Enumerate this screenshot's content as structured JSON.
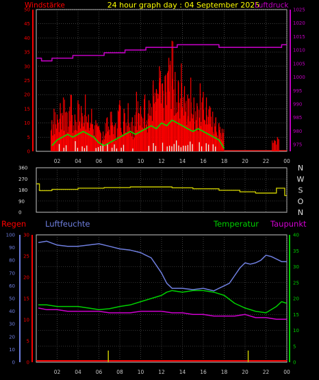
{
  "header": {
    "title": "24 hour graph day : 04 September 2025",
    "left_label": "Windstärke",
    "right_label": "Luftdruck"
  },
  "colors": {
    "wind": "#ff0000",
    "gust": "#ff0000",
    "avg_wind": "#00e000",
    "pressure": "#c000c0",
    "direction": "#c8c800",
    "humidity": "#6f7fe0",
    "temperature": "#00d000",
    "dewpoint": "#d000d0",
    "rain": "#ff0000",
    "white_bars": "#e8f8e8",
    "grid": "#6a6a6a",
    "title": "#ffff00"
  },
  "chart_data": [
    {
      "type": "bar",
      "name": "wind-panel",
      "x_ticks": [
        "02",
        "04",
        "06",
        "08",
        "10",
        "12",
        "14",
        "16",
        "18",
        "20",
        "22",
        "00"
      ],
      "left_axis": {
        "label": "Windstärke",
        "ticks": [
          0,
          5,
          10,
          15,
          20,
          25,
          30,
          35,
          40,
          45,
          50
        ],
        "ylim": [
          0,
          50
        ]
      },
      "right_axis": {
        "label": "Luftdruck",
        "ticks": [
          975,
          980,
          985,
          990,
          995,
          1000,
          1005,
          1010,
          1015,
          1020,
          1025
        ],
        "ylim": [
          972.5,
          1025
        ]
      },
      "series": [
        {
          "name": "gust",
          "x": [
            1.5,
            1.7,
            2.0,
            2.3,
            2.6,
            2.9,
            3.3,
            3.7,
            4.0,
            4.3,
            4.7,
            5.0,
            5.3,
            5.7,
            6.0,
            6.4,
            6.8,
            7.2,
            7.6,
            8.0,
            8.4,
            8.8,
            9.2,
            9.6,
            10.0,
            10.4,
            10.8,
            11.2,
            11.5,
            11.8,
            12.1,
            12.4,
            12.7,
            13.0,
            13.3,
            13.6,
            13.9,
            14.2,
            14.5,
            14.8,
            15.1,
            15.4,
            15.7,
            16.0,
            16.3,
            16.6,
            16.9,
            17.2,
            17.5,
            17.8,
            22.8,
            23.1
          ],
          "values": [
            11,
            15,
            13,
            17,
            19,
            14,
            20,
            13,
            18,
            16,
            20,
            13,
            15,
            11,
            9,
            7,
            12,
            14,
            10,
            18,
            15,
            17,
            12,
            21,
            16,
            20,
            18,
            25,
            22,
            30,
            24,
            27,
            33,
            39,
            28,
            25,
            31,
            23,
            20,
            26,
            19,
            17,
            24,
            21,
            19,
            16,
            14,
            12,
            10,
            8,
            4,
            5
          ]
        },
        {
          "name": "average",
          "x": [
            1.5,
            2,
            2.5,
            3,
            3.5,
            4,
            4.5,
            5,
            5.5,
            6,
            6.5,
            7,
            7.5,
            8,
            8.5,
            9,
            9.5,
            10,
            10.5,
            11,
            11.5,
            12,
            12.5,
            13,
            13.5,
            14,
            14.5,
            15,
            15.5,
            16,
            16.5,
            17,
            17.5,
            18
          ],
          "values": [
            2,
            4,
            5,
            6,
            5,
            6,
            7,
            6,
            5,
            3,
            2,
            3,
            4,
            5,
            6,
            7,
            6,
            7,
            8,
            9,
            8,
            10,
            9,
            11,
            10,
            9,
            8,
            7,
            8,
            7,
            6,
            5,
            4,
            1
          ]
        },
        {
          "name": "pressure",
          "x": [
            0,
            0.5,
            0.5,
            1.5,
            1.5,
            3.5,
            3.5,
            6.5,
            6.5,
            8.5,
            8.5,
            10.5,
            10.5,
            13.5,
            13.5,
            17.5,
            17.5,
            21.5,
            21.5,
            23.5,
            23.5,
            24
          ],
          "values": [
            1007,
            1007,
            1006,
            1006,
            1007,
            1007,
            1008,
            1008,
            1009,
            1009,
            1010,
            1010,
            1011,
            1011,
            1012,
            1012,
            1011,
            1011,
            1011,
            1011,
            1012,
            1012
          ]
        }
      ]
    },
    {
      "type": "line",
      "name": "direction-panel",
      "x_ticks": [],
      "left_axis": {
        "ticks": [
          0,
          90,
          180,
          270,
          360
        ],
        "ylim": [
          0,
          360
        ]
      },
      "right_labels": [
        "N",
        "W",
        "S",
        "O",
        "N"
      ],
      "series": [
        {
          "name": "direction",
          "x": [
            0,
            0.3,
            0.3,
            1.5,
            1.5,
            4,
            4,
            6.5,
            6.5,
            9,
            9,
            13,
            13,
            15,
            15,
            17.5,
            17.5,
            19.5,
            19.5,
            21,
            21,
            23,
            23,
            23.8,
            23.8,
            24
          ],
          "values": [
            230,
            230,
            175,
            175,
            185,
            185,
            195,
            195,
            200,
            200,
            205,
            205,
            198,
            198,
            190,
            190,
            178,
            178,
            165,
            165,
            155,
            155,
            195,
            195,
            135,
            135
          ]
        }
      ]
    },
    {
      "type": "line",
      "name": "climate-panel",
      "x_ticks": [
        "02",
        "04",
        "06",
        "08",
        "10",
        "12",
        "14",
        "16",
        "18",
        "20",
        "22",
        "00"
      ],
      "labels": {
        "regen": "Regen",
        "luftfeuchte": "Luftfeuchte",
        "temperatur": "Temperatur",
        "taupunkt": "Taupunkt"
      },
      "left_axis_humidity": {
        "ticks": [
          0,
          10,
          20,
          30,
          40,
          50,
          60,
          70,
          80,
          90,
          100
        ],
        "ylim": [
          0,
          100
        ]
      },
      "left_axis_rain": {
        "ticks": [
          0,
          5,
          10,
          15,
          20,
          25,
          30
        ],
        "ylim": [
          0,
          30
        ]
      },
      "right_axis_temp": {
        "ticks": [
          0,
          5,
          10,
          15,
          20,
          25,
          30,
          35,
          40
        ],
        "ylim": [
          0,
          40
        ]
      },
      "series": [
        {
          "name": "humidity",
          "x": [
            0.2,
            1,
            2,
            3,
            4,
            5,
            6,
            7,
            8,
            9,
            10,
            10.5,
            11,
            11.5,
            12,
            12.5,
            13,
            14,
            15,
            16,
            16.5,
            17,
            17.5,
            18,
            18.5,
            19,
            19.5,
            20,
            20.5,
            21,
            21.5,
            22,
            22.5,
            23,
            23.5,
            24
          ],
          "values": [
            94,
            95,
            92,
            91,
            91,
            92,
            93,
            91,
            89,
            88,
            86,
            84,
            82,
            76,
            70,
            62,
            58,
            58,
            57,
            58,
            57,
            56,
            58,
            60,
            62,
            68,
            74,
            78,
            77,
            78,
            80,
            84,
            83,
            81,
            79,
            79
          ]
        },
        {
          "name": "temperature",
          "x": [
            0.2,
            1,
            2,
            3,
            4,
            5,
            6,
            7,
            8,
            9,
            10,
            11,
            12,
            12.5,
            13,
            14,
            15,
            16,
            17,
            18,
            19,
            20,
            21,
            22,
            23,
            23.5,
            24
          ],
          "values": [
            18,
            18,
            17.5,
            17.5,
            17.5,
            17,
            16.5,
            16.8,
            17.5,
            18,
            19,
            20,
            21,
            22,
            22.5,
            22,
            22.5,
            22.5,
            22,
            21,
            18.5,
            17,
            16,
            15.5,
            17.5,
            19,
            18.5
          ]
        },
        {
          "name": "dewpoint",
          "x": [
            0.2,
            1,
            2,
            3,
            4,
            5,
            6,
            7,
            8,
            9,
            10,
            11,
            12,
            13,
            14,
            15,
            16,
            17,
            18,
            19,
            20,
            21,
            22,
            23,
            24
          ],
          "values": [
            17,
            16.5,
            16.5,
            16,
            16,
            16,
            16,
            15.5,
            15.5,
            15.5,
            16,
            16,
            16,
            15.5,
            15.5,
            15,
            15,
            14.5,
            14.5,
            14.5,
            15,
            14,
            14,
            13.5,
            13.5
          ]
        },
        {
          "name": "rain",
          "x": [
            0,
            24
          ],
          "values": [
            0,
            0
          ]
        }
      ],
      "markers_x": [
        6.9,
        20.3
      ]
    }
  ]
}
